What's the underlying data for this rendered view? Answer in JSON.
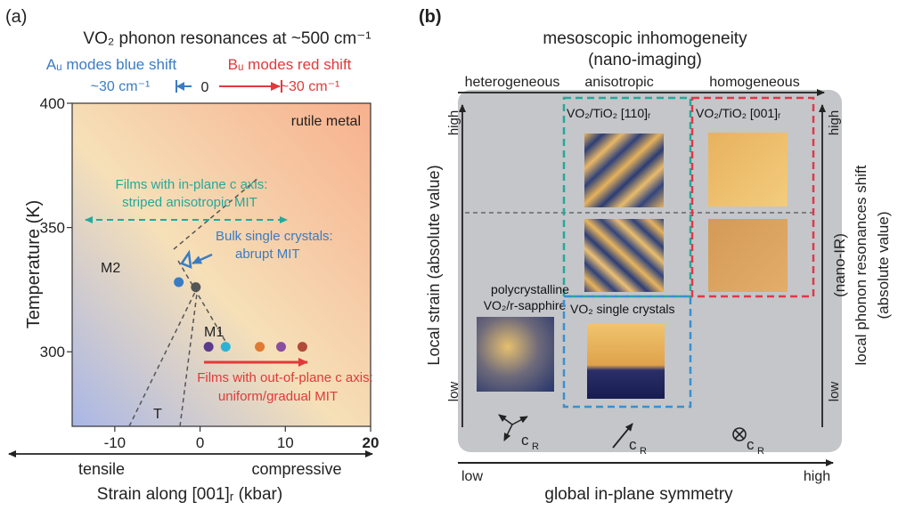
{
  "panel_a": {
    "label": "(a)",
    "title": "VO₂ phonon resonances at ~500 cm⁻¹",
    "au_label": "Aᵤ modes blue shift",
    "bu_label": "Bᵤ modes red shift",
    "au_shift": "~30 cm⁻¹",
    "bu_shift": "~30 cm⁻¹",
    "zero_label": "0",
    "rutile_label": "rutile metal",
    "inplane_text_1": "Films with in-plane c axis:",
    "inplane_text_2": "striped anisotropic MIT",
    "bulk_text_1": "Bulk single crystals:",
    "bulk_text_2": "abrupt MIT",
    "outplane_text_1": "Films with out-of-plane c axis:",
    "outplane_text_2": "uniform/gradual MIT",
    "phase_m2": "M2",
    "phase_m1": "M1",
    "phase_t": "T",
    "y_axis_label": "Temperature (K)",
    "x_axis_label": "Strain along [001]ᵣ  (kbar)",
    "tensile_label": "tensile",
    "compressive_label": "compressive",
    "chart_data": {
      "type": "scatter",
      "xlim": [
        -15,
        20
      ],
      "ylim": [
        270,
        400
      ],
      "xticks": [
        "-10",
        "0",
        "10",
        "20"
      ],
      "yticks": [
        "300",
        "350",
        "400"
      ],
      "series": [
        {
          "color": "#3a7cc4",
          "points": [
            [
              -2.5,
              328
            ]
          ]
        },
        {
          "color": "#555555",
          "points": [
            [
              -0.5,
              326
            ]
          ]
        },
        {
          "color": "#5b3a8c",
          "points": [
            [
              1,
              302
            ]
          ]
        },
        {
          "color": "#2bb3d6",
          "points": [
            [
              3,
              302
            ]
          ]
        },
        {
          "color": "#e07a32",
          "points": [
            [
              7,
              302
            ]
          ]
        },
        {
          "color": "#8a4ea0",
          "points": [
            [
              9.5,
              302
            ]
          ]
        },
        {
          "color": "#b04a3a",
          "points": [
            [
              12,
              302
            ]
          ]
        }
      ]
    }
  },
  "panel_b": {
    "label": "(b)",
    "title_1": "mesoscopic inhomogeneity",
    "title_2": "(nano-imaging)",
    "col_heterogeneous": "heterogeneous",
    "col_anisotropic": "anisotropic",
    "col_homogeneous": "homogeneous",
    "box_110": "VO₂/TiO₂ [110]ᵣ",
    "box_001": "VO₂/TiO₂ [001]ᵣ",
    "poly_1": "polycrystalline",
    "poly_2": "VO₂/r-sapphire",
    "single_crystals": "VO₂ single crystals",
    "left_axis": "Local strain (absolute value)",
    "left_high": "high",
    "left_low": "low",
    "right_high": "high",
    "right_low": "low",
    "right_axis_1": "(nano-IR)",
    "right_axis_2": "local phonon resonances shift",
    "right_axis_3": "(absolute value)",
    "bottom_low": "low",
    "bottom_high": "high",
    "bottom_axis": "global in-plane symmetry",
    "cr_label": "c",
    "cr_sub": "R"
  }
}
